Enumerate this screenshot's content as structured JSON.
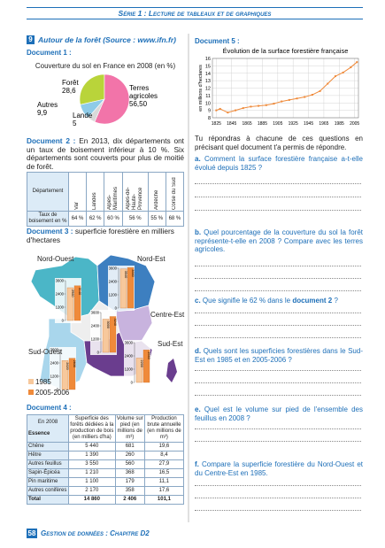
{
  "header": {
    "title": "Série 1 : Lecture de tableaux et de graphiques"
  },
  "exercise": {
    "number": "9",
    "title": "Autour de la forêt (Source : www.ifn.fr)"
  },
  "document1": {
    "label": "Document 1 :"
  },
  "document2": {
    "label": "Document 2 :",
    "text": "En 2013, dix départements ont un taux de boisement inférieur à 10 %. Six départements sont couverts pour plus de moitié de forêt.",
    "table": {
      "header": [
        "Département",
        "Var",
        "Landes",
        "Alpes-Maritimes",
        "Alpes-de-Haute-Provence",
        "Ardèche",
        "Corse du Sud"
      ],
      "row": [
        "Taux de boisement en %",
        "64 %",
        "62 %",
        "60 %",
        "56 %",
        "55 %",
        "68 %"
      ]
    }
  },
  "document3": {
    "label": "Document 3 :",
    "text": "superficie forestière en milliers d'hectares",
    "ylim": [
      0,
      3600
    ],
    "axis_ticks": [
      0,
      1200,
      2400,
      3600
    ],
    "legend": [
      "1985",
      "2005-2006"
    ],
    "colors": [
      "#f7c89c",
      "#ef8a3a"
    ],
    "regions": [
      {
        "name": "Nord-Ouest",
        "values": [
          2960,
          3140
        ]
      },
      {
        "name": "Nord-Est",
        "values": [
          3540,
          3660
        ]
      },
      {
        "name": "Centre-Est",
        "values": [
          3000,
          3240
        ]
      },
      {
        "name": "Sud-Ouest",
        "values": [
          2620,
          2830
        ]
      },
      {
        "name": "Sud-Est",
        "values": [
          2200,
          2940
        ]
      }
    ]
  },
  "document4": {
    "label": "Document 4 :",
    "table": {
      "header": [
        "En 2008",
        "Superficie des forêts dédiées à la production de bois (en milliers d'ha)",
        "Volume sur pied (en millions de m³)",
        "Production brute annuelle (en millions de m³)"
      ],
      "row_header": "Essence",
      "rows": [
        [
          "Chêne",
          "5 440",
          "681",
          "19,6"
        ],
        [
          "Hêtre",
          "1 390",
          "260",
          "8,4"
        ],
        [
          "Autres feuillus",
          "3 550",
          "560",
          "27,9"
        ],
        [
          "Sapin-Épicéa",
          "1 210",
          "368",
          "16,5"
        ],
        [
          "Pin maritime",
          "1 100",
          "179",
          "11,1"
        ],
        [
          "Autres conifères",
          "2 170",
          "358",
          "17,6"
        ],
        [
          "Total",
          "14 860",
          "2 406",
          "101,1"
        ]
      ]
    }
  },
  "document5": {
    "label": "Document 5 :"
  },
  "chart_data": [
    {
      "type": "pie",
      "title": "Couverture du sol en France en 2008 (en %)",
      "categories": [
        "Forêt",
        "Terres agricoles",
        "Lande",
        "Autres"
      ],
      "values": [
        28.6,
        56.5,
        5,
        9.9
      ],
      "value_labels": [
        "28,6",
        "56,50",
        "5",
        "9,9"
      ],
      "colors": [
        "#b9d43a",
        "#f274a9",
        "#d9d9d9",
        "#8ecbe8"
      ]
    },
    {
      "type": "line",
      "title": "Évolution de la surface forestière française",
      "ylabel": "en millions d'hectares",
      "x": [
        1825,
        1830,
        1840,
        1850,
        1860,
        1870,
        1880,
        1890,
        1900,
        1910,
        1920,
        1930,
        1940,
        1950,
        1960,
        1970,
        1980,
        1990,
        2000,
        2008
      ],
      "values": [
        9,
        9.2,
        8.7,
        9,
        9.3,
        9.5,
        9.6,
        9.7,
        9.9,
        10.2,
        10.4,
        10.6,
        10.8,
        11.1,
        11.6,
        12.6,
        13.6,
        14.1,
        14.8,
        15.5
      ],
      "color": "#ef8a3a",
      "xlim": [
        1820,
        2010
      ],
      "xticks": [
        1825,
        1845,
        1865,
        1885,
        1905,
        1925,
        1945,
        1965,
        1985,
        2005
      ],
      "ylim": [
        8,
        16
      ],
      "yticks": [
        8,
        9,
        10,
        11,
        12,
        13,
        14,
        15,
        16
      ],
      "grid": true
    }
  ],
  "instructions": "Tu répondras à chacune de ces questions en précisant quel document t'a permis de répondre.",
  "questions": [
    {
      "letter": "a.",
      "text": "Comment la surface forestière française a-t-elle évolué depuis 1825 ?"
    },
    {
      "letter": "b.",
      "text": "Quel pourcentage de la couverture du sol la forêt représente-t-elle en 2008 ? Compare avec les terres agricoles."
    },
    {
      "letter": "c.",
      "text": "Que signifie le 62 % dans le",
      "highlight": "document 2",
      "end": " ?"
    },
    {
      "letter": "d.",
      "text": "Quels sont les superficies forestières dans le Sud-Est en 1985 et en 2005-2006 ?"
    },
    {
      "letter": "e.",
      "text": "Quel est le volume sur pied de l'ensemble des feuillus en 2008 ?"
    },
    {
      "letter": "f.",
      "text": "Compare la superficie forestière du Nord-Ouest et du Centre-Est en 1985."
    }
  ],
  "footer": {
    "page": "58",
    "title": "Gestion de données : Chapitre D2"
  }
}
